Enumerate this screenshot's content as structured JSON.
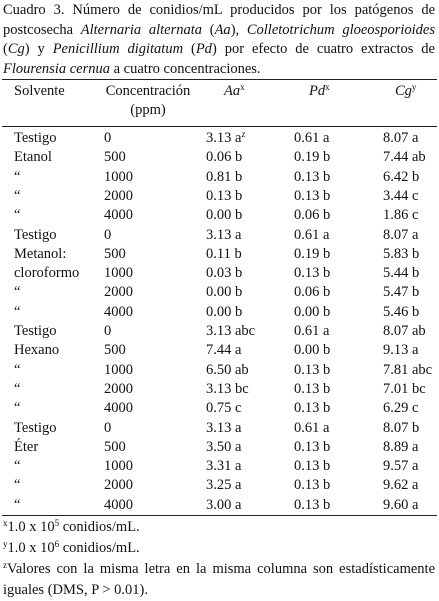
{
  "caption": [
    {
      "text": "Cuadro 3. Número de conidios/mL producidos por los patógenos de postcosecha ",
      "italic": false
    },
    {
      "text": "Alternaria alternata",
      "italic": true
    },
    {
      "text": " (",
      "italic": false
    },
    {
      "text": "Aa",
      "italic": true
    },
    {
      "text": "), ",
      "italic": false
    },
    {
      "text": "Colletotrichum gloeosporioides",
      "italic": true
    },
    {
      "text": " (",
      "italic": false
    },
    {
      "text": "Cg",
      "italic": true
    },
    {
      "text": ") y ",
      "italic": false
    },
    {
      "text": "Penicillium digitatum",
      "italic": true
    },
    {
      "text": " (",
      "italic": false
    },
    {
      "text": "Pd",
      "italic": true
    },
    {
      "text": ") por efecto de cuatro extractos de ",
      "italic": false
    },
    {
      "text": "Flourensia cernua",
      "italic": true
    },
    {
      "text": " a cuatro concentraciones.",
      "italic": false
    }
  ],
  "table": {
    "header": [
      {
        "text": "Solvente"
      },
      {
        "text": "Concentración (ppm)"
      },
      {
        "text": "Aa",
        "sup": "x",
        "italic": true
      },
      {
        "text": "Pd",
        "sup": "x",
        "italic": true
      },
      {
        "text": "Cg",
        "sup": "y",
        "italic": true
      }
    ],
    "rows": [
      [
        "Testigo",
        "0",
        {
          "text": "3.13 a",
          "sup": "z"
        },
        "0.61 a",
        "8.07 a"
      ],
      [
        "Etanol",
        "500",
        "0.06 b",
        "0.19 b",
        "7.44 ab"
      ],
      [
        "“",
        "1000",
        "0.81 b",
        "0.13 b",
        "6.42 b"
      ],
      [
        "“",
        "2000",
        "0.13 b",
        "0.13 b",
        "3.44 c"
      ],
      [
        "“",
        "4000",
        "0.00 b",
        "0.06 b",
        "1.86 c"
      ],
      [
        "Testigo",
        "0",
        "3.13 a",
        "0.61 a",
        "8.07 a"
      ],
      [
        "Metanol:",
        "500",
        "0.11 b",
        "0.19 b",
        "5.83 b"
      ],
      [
        "cloroformo",
        "1000",
        "0.03 b",
        "0.13 b",
        "5.44 b"
      ],
      [
        "“",
        "2000",
        "0.00 b",
        "0.06 b",
        "5.47 b"
      ],
      [
        "“",
        "4000",
        "0.00 b",
        "0.00 b",
        "5.46 b"
      ],
      [
        "Testigo",
        "0",
        "3.13 abc",
        "0.61 a",
        "8.07 ab"
      ],
      [
        "Hexano",
        "500",
        "7.44 a",
        "0.00 b",
        "9.13 a"
      ],
      [
        "“",
        "1000",
        "6.50 ab",
        "0.13 b",
        "7.81 abc"
      ],
      [
        "“",
        "2000",
        "3.13 bc",
        "0.13 b",
        "7.01 bc"
      ],
      [
        "“",
        "4000",
        "0.75 c",
        "0.13 b",
        "6.29 c"
      ],
      [
        "Testigo",
        "0",
        "3.13 a",
        "0.61 a",
        "8.07 b"
      ],
      [
        "Éter",
        "500",
        "3.50 a",
        "0.13 b",
        "8.89 a"
      ],
      [
        "“",
        "1000",
        "3.31 a",
        "0.13 b",
        "9.57 a"
      ],
      [
        "“",
        "2000",
        "3.25 a",
        "0.13 b",
        "9.62 a"
      ],
      [
        "“",
        "4000",
        "3.00 a",
        "0.13 b",
        "9.60 a"
      ]
    ]
  },
  "footnotes": [
    [
      {
        "text": "x",
        "sup": true
      },
      {
        "text": "1.0 x 10",
        "sup": false
      },
      {
        "text": "5",
        "sup": true
      },
      {
        "text": " conidios/mL.",
        "sup": false
      }
    ],
    [
      {
        "text": "y",
        "sup": true
      },
      {
        "text": "1.0 x 10",
        "sup": false
      },
      {
        "text": "6",
        "sup": true
      },
      {
        "text": " conidios/mL.",
        "sup": false
      }
    ],
    [
      {
        "text": "z",
        "sup": true
      },
      {
        "text": "Valores con la misma letra en la misma columna son estadísticamente iguales (DMS, P > 0.01).",
        "sup": false
      }
    ]
  ]
}
